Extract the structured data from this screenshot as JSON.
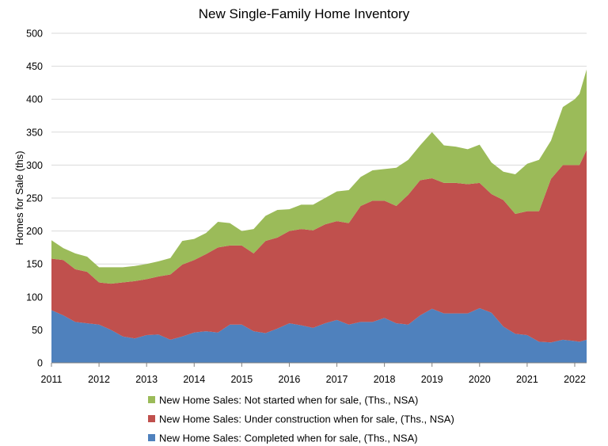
{
  "chart_data": {
    "type": "area",
    "stacked": true,
    "title": "New Single-Family Home Inventory",
    "xlabel": "",
    "ylabel": "Homes for Sale (ths)",
    "ylim": [
      0,
      500
    ],
    "yticks": [
      0,
      50,
      100,
      150,
      200,
      250,
      300,
      350,
      400,
      450,
      500
    ],
    "xlim": [
      2011,
      2022.25
    ],
    "xticks": [
      "2011",
      "2012",
      "2013",
      "2014",
      "2015",
      "2016",
      "2017",
      "2018",
      "2019",
      "2020",
      "2021",
      "2022"
    ],
    "grid": true,
    "legend_position": "bottom",
    "x": [
      2011.0,
      2011.25,
      2011.5,
      2011.75,
      2012.0,
      2012.25,
      2012.5,
      2012.75,
      2013.0,
      2013.25,
      2013.5,
      2013.75,
      2014.0,
      2014.25,
      2014.5,
      2014.75,
      2015.0,
      2015.25,
      2015.5,
      2015.75,
      2016.0,
      2016.25,
      2016.5,
      2016.75,
      2017.0,
      2017.25,
      2017.5,
      2017.75,
      2018.0,
      2018.25,
      2018.5,
      2018.75,
      2019.0,
      2019.25,
      2019.5,
      2019.75,
      2020.0,
      2020.25,
      2020.5,
      2020.75,
      2021.0,
      2021.25,
      2021.5,
      2021.75,
      2022.0,
      2022.1,
      2022.25
    ],
    "series": [
      {
        "name": "New Home Sales: Completed when for sale, (Ths., NSA)",
        "color": "#4f81bd",
        "values": [
          80,
          72,
          62,
          60,
          58,
          50,
          40,
          37,
          42,
          43,
          35,
          40,
          46,
          48,
          46,
          58,
          58,
          48,
          45,
          52,
          60,
          57,
          53,
          60,
          65,
          58,
          62,
          62,
          68,
          60,
          58,
          72,
          82,
          75,
          75,
          75,
          83,
          76,
          55,
          44,
          42,
          32,
          31,
          35,
          33,
          32,
          35
        ]
      },
      {
        "name": "New Home Sales: Under construction when for sale, (Ths., NSA)",
        "color": "#c0504d",
        "values": [
          78,
          84,
          80,
          78,
          64,
          70,
          82,
          87,
          85,
          88,
          99,
          109,
          110,
          117,
          129,
          120,
          120,
          118,
          140,
          138,
          140,
          146,
          148,
          150,
          150,
          154,
          176,
          184,
          178,
          178,
          197,
          205,
          198,
          198,
          198,
          196,
          190,
          180,
          192,
          182,
          188,
          198,
          248,
          265,
          267,
          268,
          288
        ]
      },
      {
        "name": "New Home Sales: Not started when for sale, (Ths., NSA)",
        "color": "#9bbb59",
        "values": [
          28,
          18,
          24,
          23,
          23,
          25,
          23,
          23,
          23,
          23,
          25,
          36,
          32,
          32,
          39,
          34,
          22,
          37,
          38,
          42,
          33,
          37,
          39,
          40,
          45,
          50,
          44,
          46,
          48,
          58,
          53,
          53,
          70,
          57,
          55,
          53,
          58,
          48,
          43,
          60,
          72,
          78,
          58,
          88,
          100,
          108,
          122
        ]
      }
    ]
  }
}
